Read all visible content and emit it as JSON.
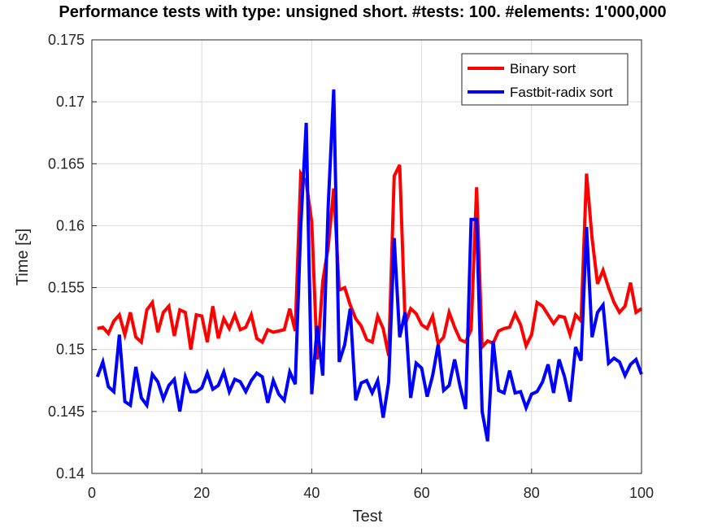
{
  "chart_data": {
    "type": "line",
    "title": "Performance tests with type: unsigned short. #tests: 100. #elements: 1'000,000",
    "xlabel": "Test",
    "ylabel": "Time [s]",
    "xlim": [
      0,
      100
    ],
    "ylim": [
      0.14,
      0.175
    ],
    "xticks": [
      0,
      20,
      40,
      60,
      80,
      100
    ],
    "yticks": [
      0.14,
      0.145,
      0.15,
      0.155,
      0.16,
      0.165,
      0.17,
      0.175
    ],
    "ytick_labels": [
      "0.14",
      "0.145",
      "0.15",
      "0.155",
      "0.16",
      "0.165",
      "0.17",
      "0.175"
    ],
    "grid": true,
    "legend_position": "top-right",
    "x": [
      1,
      2,
      3,
      4,
      5,
      6,
      7,
      8,
      9,
      10,
      11,
      12,
      13,
      14,
      15,
      16,
      17,
      18,
      19,
      20,
      21,
      22,
      23,
      24,
      25,
      26,
      27,
      28,
      29,
      30,
      31,
      32,
      33,
      34,
      35,
      36,
      37,
      38,
      39,
      40,
      41,
      42,
      43,
      44,
      45,
      46,
      47,
      48,
      49,
      50,
      51,
      52,
      53,
      54,
      55,
      56,
      57,
      58,
      59,
      60,
      61,
      62,
      63,
      64,
      65,
      66,
      67,
      68,
      69,
      70,
      71,
      72,
      73,
      74,
      75,
      76,
      77,
      78,
      79,
      80,
      81,
      82,
      83,
      84,
      85,
      86,
      87,
      88,
      89,
      90,
      91,
      92,
      93,
      94,
      95,
      96,
      97,
      98,
      99,
      100
    ],
    "series": [
      {
        "name": "Binary sort",
        "color": "#ff0000",
        "values": [
          0.1517,
          0.1518,
          0.1513,
          0.1523,
          0.1528,
          0.1512,
          0.153,
          0.151,
          0.1506,
          0.1532,
          0.1538,
          0.1514,
          0.153,
          0.1535,
          0.1511,
          0.1532,
          0.153,
          0.15,
          0.1528,
          0.1527,
          0.1506,
          0.1535,
          0.1509,
          0.1525,
          0.1517,
          0.1528,
          0.1516,
          0.1518,
          0.1528,
          0.1509,
          0.1506,
          0.1516,
          0.1514,
          0.1515,
          0.1516,
          0.1533,
          0.1515,
          0.1642,
          0.1635,
          0.1603,
          0.1492,
          0.1555,
          0.1583,
          0.163,
          0.1548,
          0.155,
          0.1536,
          0.1525,
          0.1519,
          0.1508,
          0.1506,
          0.1527,
          0.1517,
          0.1495,
          0.164,
          0.1649,
          0.152,
          0.1533,
          0.1529,
          0.152,
          0.1517,
          0.1527,
          0.1505,
          0.151,
          0.153,
          0.1518,
          0.1508,
          0.1506,
          0.1516,
          0.1631,
          0.1502,
          0.1507,
          0.1505,
          0.1515,
          0.1517,
          0.1518,
          0.1529,
          0.152,
          0.1503,
          0.1512,
          0.1538,
          0.1535,
          0.1528,
          0.1521,
          0.1527,
          0.1526,
          0.1512,
          0.1528,
          0.1523,
          0.1642,
          0.159,
          0.1553,
          0.1564,
          0.155,
          0.1538,
          0.153,
          0.1535,
          0.1554,
          0.153,
          0.1533
        ]
      },
      {
        "name": "Fastbit-radix sort",
        "color": "#0000ff",
        "values": [
          0.1478,
          0.149,
          0.147,
          0.1466,
          0.1512,
          0.1458,
          0.1455,
          0.1486,
          0.1461,
          0.1455,
          0.148,
          0.1474,
          0.146,
          0.1471,
          0.1476,
          0.145,
          0.1478,
          0.1466,
          0.1466,
          0.1469,
          0.1481,
          0.1468,
          0.1471,
          0.1482,
          0.1466,
          0.1476,
          0.1474,
          0.1466,
          0.1475,
          0.1481,
          0.1478,
          0.1457,
          0.1475,
          0.1464,
          0.1459,
          0.1482,
          0.1472,
          0.1599,
          0.1683,
          0.1464,
          0.1519,
          0.1479,
          0.1616,
          0.171,
          0.149,
          0.1504,
          0.1533,
          0.1459,
          0.1473,
          0.1475,
          0.1465,
          0.1475,
          0.1445,
          0.1474,
          0.159,
          0.151,
          0.153,
          0.1461,
          0.1489,
          0.1485,
          0.1462,
          0.1479,
          0.1504,
          0.1467,
          0.1471,
          0.1492,
          0.147,
          0.1452,
          0.1605,
          0.1605,
          0.145,
          0.1426,
          0.1507,
          0.1467,
          0.1465,
          0.1483,
          0.1465,
          0.1466,
          0.1453,
          0.1464,
          0.1466,
          0.1474,
          0.1488,
          0.1465,
          0.1492,
          0.1478,
          0.1458,
          0.1502,
          0.1491,
          0.1599,
          0.151,
          0.153,
          0.1536,
          0.1489,
          0.1493,
          0.149,
          0.1479,
          0.1488,
          0.1492,
          0.148
        ]
      }
    ]
  }
}
